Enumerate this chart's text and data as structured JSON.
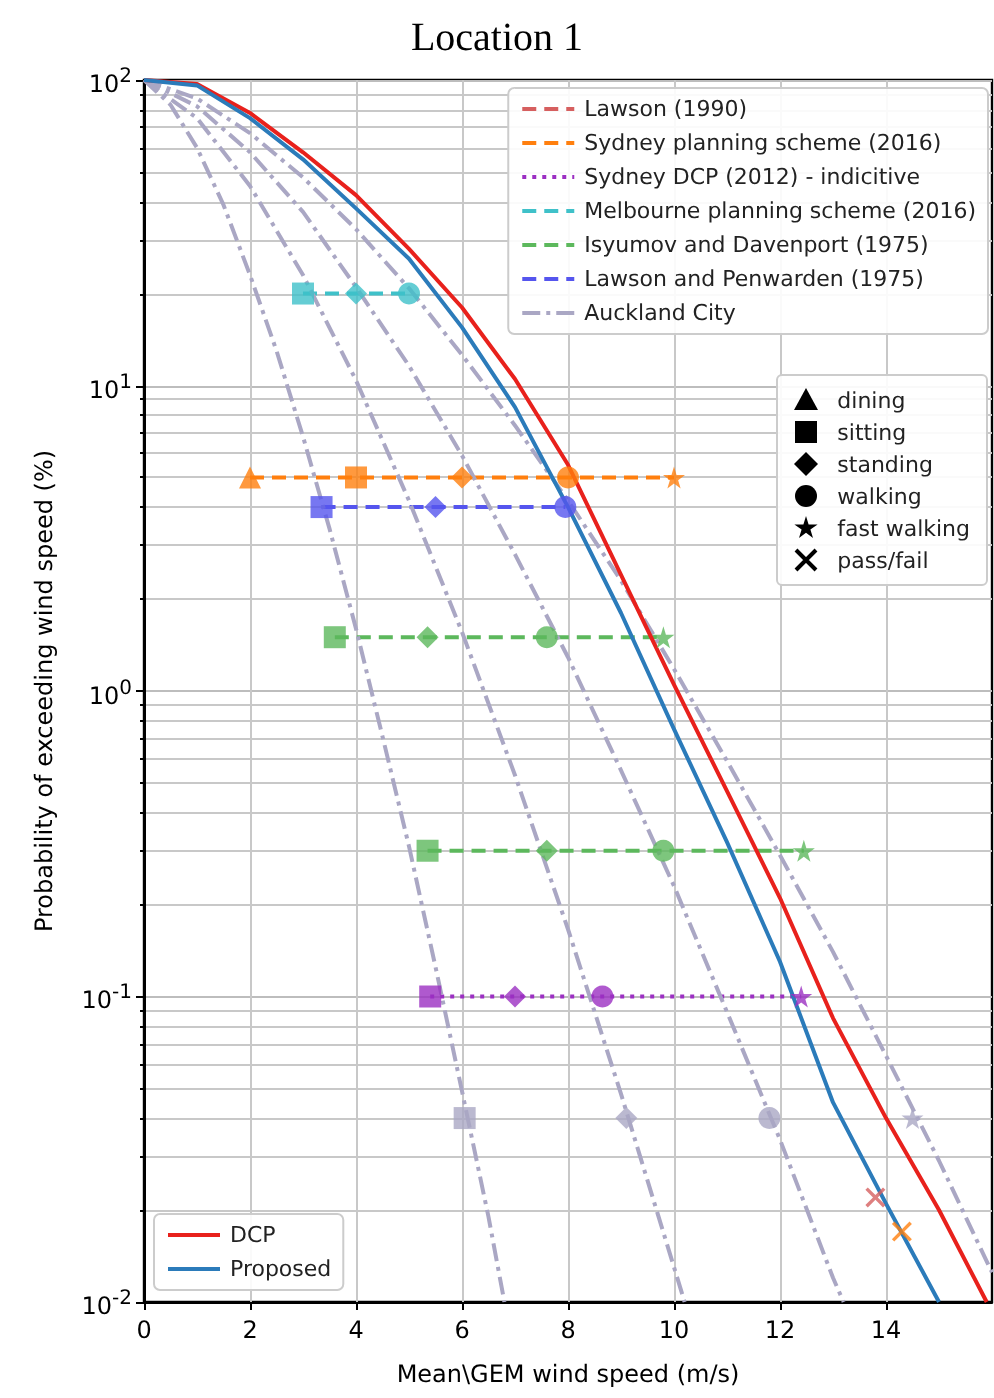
{
  "chart_data": {
    "type": "line",
    "title": "Location 1",
    "xlabel": "Mean\\GEM wind speed (m/s)",
    "ylabel": "Probability of exceeding wind speed (%)",
    "xlim": [
      0,
      16
    ],
    "xticks": [
      0,
      2,
      4,
      6,
      8,
      10,
      12,
      14
    ],
    "ylim": [
      0.01,
      100
    ],
    "yticks": [
      {
        "value": 0.01,
        "label": "10$^{-2}$"
      },
      {
        "value": 0.1,
        "label": "10$^{-1}$"
      },
      {
        "value": 1,
        "label": "10$^{0}$"
      },
      {
        "value": 10,
        "label": "10$^{1}$"
      },
      {
        "value": 100,
        "label": "10$^{2}$"
      }
    ],
    "annotations": [
      "dining",
      "sitting",
      "standing",
      "walking",
      "fast walking",
      "pass/fail"
    ],
    "log": "y",
    "grid": true,
    "legend": "top right",
    "marker": "none",
    "series": [
      {
        "name": "DCP",
        "color": "#e8211c",
        "line_style": "solid",
        "x": [
          0,
          1,
          2,
          3,
          4,
          5,
          6,
          7,
          8,
          9,
          10,
          11,
          12,
          13,
          14,
          15,
          15.9
        ],
        "values": [
          100,
          97,
          78,
          58,
          42,
          28,
          18,
          10.5,
          5.5,
          2.4,
          1.05,
          0.47,
          0.21,
          0.085,
          0.04,
          0.02,
          0.01
        ]
      },
      {
        "name": "Proposed",
        "color": "#2b7bba",
        "line_style": "solid",
        "x": [
          0,
          1,
          2,
          3,
          4,
          5,
          6,
          7,
          8,
          9,
          10,
          11,
          12,
          13,
          14,
          15
        ],
        "values": [
          100,
          96,
          75,
          55,
          38,
          26,
          15.5,
          8.5,
          4,
          1.8,
          0.75,
          0.32,
          0.13,
          0.045,
          0.021,
          0.01
        ]
      },
      {
        "name": "Lawson (1990)",
        "color": "#d65f5f",
        "line_style": "dashed"
      },
      {
        "name": "Sydney planning scheme (2016)",
        "color": "#ff7f0e",
        "line_style": "dashed",
        "x": [
          2,
          4,
          6,
          8,
          10
        ],
        "values": [
          5,
          5,
          5,
          5,
          5
        ]
      },
      {
        "name": "Sydney DCP (2012) - indicitive",
        "color": "#9b2fc2",
        "line_style": "dotted",
        "x": [
          5.4,
          7,
          8.65,
          12.4
        ],
        "values": [
          0.1,
          0.1,
          0.1,
          0.1
        ]
      },
      {
        "name": "Melbourne planning scheme (2016)",
        "color": "#3fc1c9",
        "line_style": "dashed",
        "x": [
          3,
          4,
          5
        ],
        "values": [
          20,
          20,
          20
        ]
      },
      {
        "name": "Isyumov and Davenport (1975)",
        "color": "#5cb85c",
        "line_style": "dashed",
        "x": [
          3.6,
          5.35,
          7.6,
          9.8
        ],
        "values": [
          1.5,
          1.5,
          1.5,
          1.5
        ]
      },
      {
        "color": "#5cb85c",
        "line_style": "dashed",
        "x": [
          5.35,
          7.6,
          9.8,
          12.45
        ],
        "values": [
          0.3,
          0.3,
          0.3,
          0.3
        ]
      },
      {
        "name": "Lawson and Penwarden (1975)",
        "color": "#5555ee",
        "line_style": "dashed",
        "x": [
          3.35,
          5.5,
          7.95
        ],
        "values": [
          4,
          4,
          4
        ]
      },
      {
        "name": "Auckland City",
        "color": "#aaa7c4",
        "line_style": "dashdot",
        "x": [
          0,
          0.5,
          1,
          1.5,
          2,
          2.5,
          3,
          3.5,
          4,
          4.5,
          5,
          5.5,
          6,
          6.5,
          6.8
        ],
        "values": [
          100,
          83,
          60,
          39,
          23,
          13,
          6.8,
          3.4,
          1.6,
          0.71,
          0.31,
          0.125,
          0.049,
          0.019,
          0.01
        ]
      },
      {
        "color": "#aaa7c4",
        "line_style": "dashdot",
        "x": [
          0,
          1,
          2,
          3,
          4,
          5,
          6,
          7,
          8,
          9,
          10,
          10.2
        ],
        "values": [
          100,
          75,
          45,
          23,
          10.4,
          4.2,
          1.56,
          0.53,
          0.166,
          0.048,
          0.013,
          0.01
        ]
      },
      {
        "color": "#aaa7c4",
        "line_style": "dashdot",
        "x": [
          0,
          1,
          2,
          3,
          4,
          5,
          6,
          7,
          8,
          9,
          10,
          11,
          12,
          13,
          13.2
        ],
        "values": [
          100,
          82,
          58,
          37,
          21,
          11.6,
          5.9,
          2.8,
          1.29,
          0.55,
          0.23,
          0.089,
          0.034,
          0.012,
          0.01
        ]
      },
      {
        "color": "#aaa7c4",
        "line_style": "dashdot",
        "x": [
          0,
          1,
          2,
          3,
          4,
          5,
          6,
          7,
          8,
          9,
          10,
          11,
          12,
          13,
          14,
          15,
          16
        ],
        "values": [
          100,
          87,
          67,
          48,
          32.5,
          20.8,
          12.6,
          7.4,
          4.2,
          2.3,
          1.18,
          0.59,
          0.29,
          0.14,
          0.064,
          0.029,
          0.0125
        ]
      },
      {
        "type": "scatter",
        "marker": "triangle",
        "color": "#000000",
        "x": [
          2
        ],
        "values": [
          5
        ],
        "colors": [
          "#ff7f0e"
        ]
      },
      {
        "type": "scatter",
        "marker": "square",
        "color": "#000000",
        "x": [
          3,
          4,
          3.35,
          3.6,
          5.35,
          5.4,
          6.05
        ],
        "values": [
          20,
          5,
          4,
          1.5,
          0.3,
          0.1,
          0.04
        ],
        "colors": [
          "#3fc1c9",
          "#ff7f0e",
          "#5555ee",
          "#5cb85c",
          "#5cb85c",
          "#9b2fc2",
          "#aaa7c4"
        ]
      },
      {
        "type": "scatter",
        "marker": "diamond",
        "color": "#000000",
        "x": [
          4,
          6,
          5.5,
          5.35,
          7.6,
          7,
          9.1
        ],
        "values": [
          20,
          5,
          4,
          1.5,
          0.3,
          0.1,
          0.04
        ],
        "colors": [
          "#3fc1c9",
          "#ff7f0e",
          "#5555ee",
          "#5cb85c",
          "#5cb85c",
          "#9b2fc2",
          "#aaa7c4"
        ]
      },
      {
        "type": "scatter",
        "marker": "circle",
        "color": "#000000",
        "x": [
          5,
          8,
          7.95,
          7.6,
          9.8,
          8.65,
          11.8
        ],
        "values": [
          20,
          5,
          4,
          1.5,
          0.3,
          0.1,
          0.04
        ],
        "colors": [
          "#3fc1c9",
          "#ff7f0e",
          "#5555ee",
          "#5cb85c",
          "#5cb85c",
          "#9b2fc2",
          "#aaa7c4"
        ]
      },
      {
        "type": "scatter",
        "marker": "star",
        "color": "#000000",
        "x": [
          10,
          9.8,
          12.45,
          12.4,
          14.5
        ],
        "values": [
          5,
          1.5,
          0.3,
          0.1,
          0.04
        ],
        "colors": [
          "#ff7f0e",
          "#5cb85c",
          "#5cb85c",
          "#9b2fc2",
          "#aaa7c4"
        ]
      },
      {
        "type": "scatter",
        "marker": "cross",
        "color": "#000000",
        "x": [
          13.8,
          14.3
        ],
        "values": [
          0.022,
          0.017
        ],
        "colors": [
          "#d65f5f",
          "#ff7f0e"
        ]
      }
    ]
  }
}
